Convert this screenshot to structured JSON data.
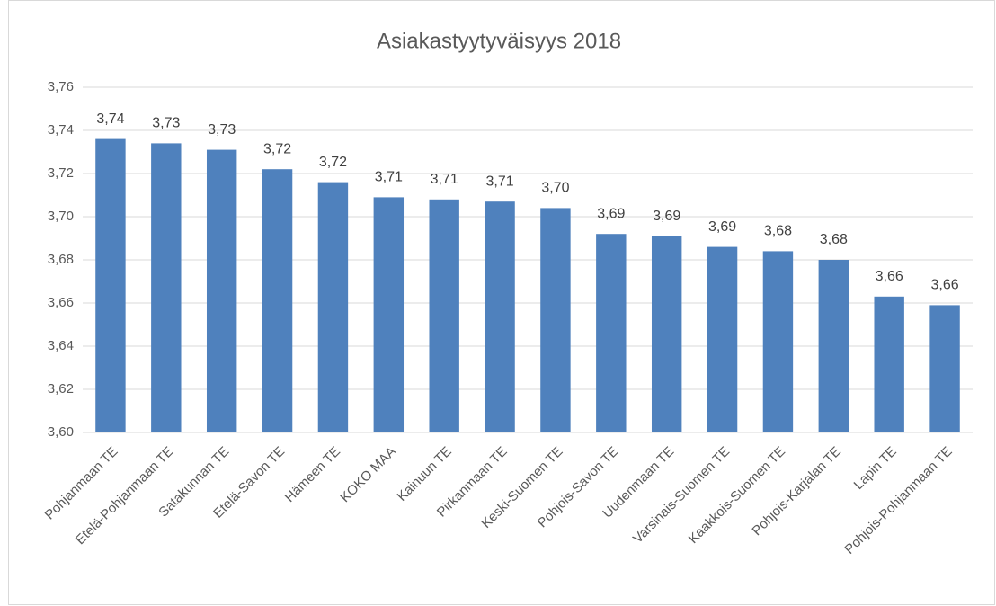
{
  "chart_data": {
    "type": "bar",
    "title": "Asiakastyytyväisyys 2018",
    "categories": [
      "Pohjanmaan TE",
      "Etelä-Pohjanmaan TE",
      "Satakunnan TE",
      "Etelä-Savon TE",
      "Hämeen TE",
      "KOKO MAA",
      "Kainuun TE",
      "Pirkanmaan TE",
      "Keski-Suomen TE",
      "Pohjois-Savon TE",
      "Uudenmaan TE",
      "Varsinais-Suomen TE",
      "Kaakkois-Suomen TE",
      "Pohjois-Karjalan TE",
      "Lapin TE",
      "Pohjois-Pohjanmaan TE"
    ],
    "values": [
      3.736,
      3.734,
      3.731,
      3.722,
      3.716,
      3.709,
      3.708,
      3.707,
      3.704,
      3.692,
      3.691,
      3.686,
      3.684,
      3.68,
      3.663,
      3.659
    ],
    "value_labels": [
      "3,74",
      "3,73",
      "3,73",
      "3,72",
      "3,72",
      "3,71",
      "3,71",
      "3,71",
      "3,70",
      "3,69",
      "3,69",
      "3,69",
      "3,68",
      "3,68",
      "3,66",
      "3,66"
    ],
    "color": "#4f81bd",
    "ylim": [
      3.6,
      3.76
    ],
    "yticks": [
      {
        "value": 3.6,
        "label": "3,60"
      },
      {
        "value": 3.62,
        "label": "3,62"
      },
      {
        "value": 3.64,
        "label": "3,64"
      },
      {
        "value": 3.66,
        "label": "3,66"
      },
      {
        "value": 3.68,
        "label": "3,68"
      },
      {
        "value": 3.7,
        "label": "3,70"
      },
      {
        "value": 3.72,
        "label": "3,72"
      },
      {
        "value": 3.74,
        "label": "3,74"
      },
      {
        "value": 3.76,
        "label": "3,76"
      }
    ],
    "grid": true
  }
}
